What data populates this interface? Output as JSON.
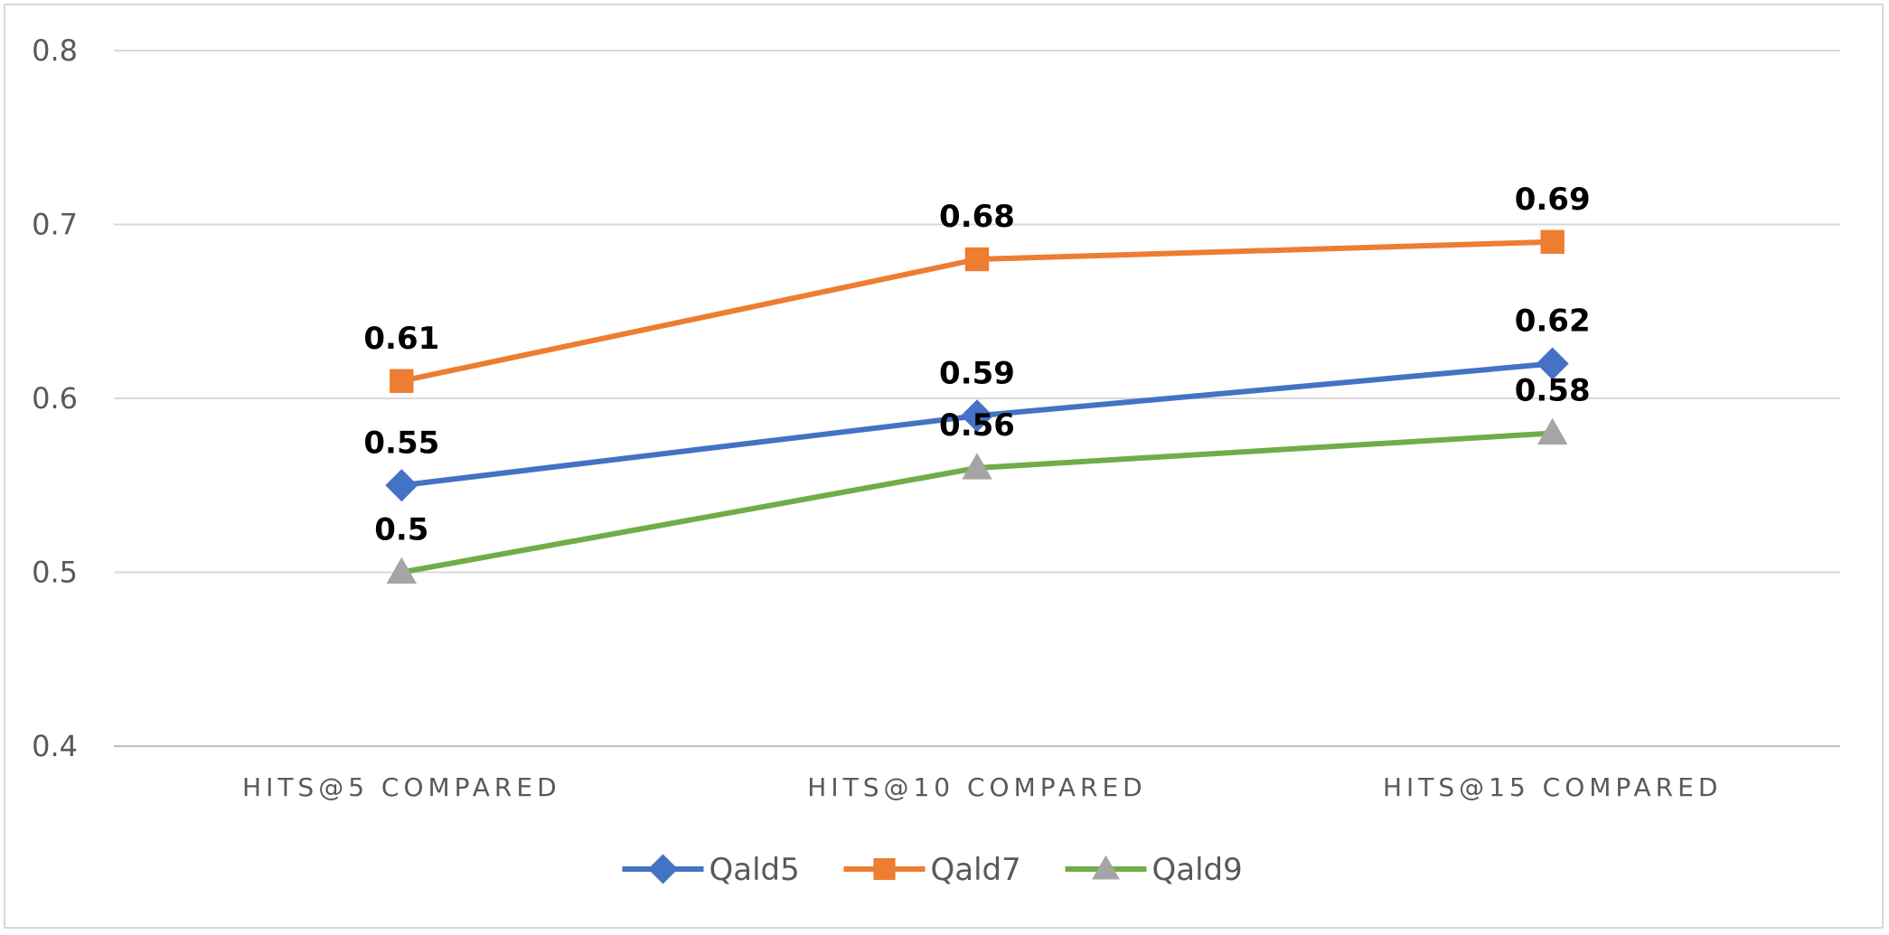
{
  "chart_data": {
    "type": "line",
    "title": "",
    "xlabel": "",
    "ylabel": "",
    "categories": [
      "HITS@5 COMPARED",
      "HITS@10 COMPARED",
      "HITS@15 COMPARED"
    ],
    "series": [
      {
        "name": "Qald5",
        "values": [
          0.55,
          0.59,
          0.62
        ],
        "labels": [
          "0.55",
          "0.59",
          "0.62"
        ],
        "line_color": "#4472C4",
        "marker_color": "#4472C4",
        "marker": "diamond"
      },
      {
        "name": "Qald7",
        "values": [
          0.61,
          0.68,
          0.69
        ],
        "labels": [
          "0.61",
          "0.68",
          "0.69"
        ],
        "line_color": "#ED7D31",
        "marker_color": "#ED7D31",
        "marker": "square"
      },
      {
        "name": "Qald9",
        "values": [
          0.5,
          0.56,
          0.58
        ],
        "labels": [
          "0.5",
          "0.56",
          "0.58"
        ],
        "line_color": "#70AD47",
        "marker_color": "#A5A5A5",
        "marker": "triangle"
      }
    ],
    "ylim": [
      0.4,
      0.8
    ],
    "yticks": [
      "0.4",
      "0.5",
      "0.6",
      "0.7",
      "0.8"
    ],
    "grid": true,
    "legend_position": "bottom",
    "gridline_color": "#d9d9d9",
    "axis_color": "#bfbfbf"
  }
}
